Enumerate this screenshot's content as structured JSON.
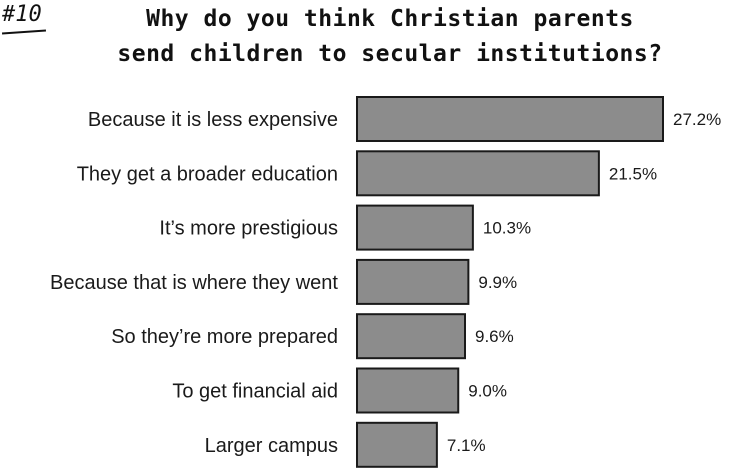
{
  "header": {
    "badge": "#10",
    "title_line1": "Why do you think Christian parents",
    "title_line2": "send children to secular institutions?"
  },
  "chart_data": {
    "type": "bar",
    "orientation": "horizontal",
    "title": "Why do you think Christian parents send children to secular institutions?",
    "categories": [
      "Because it is less expensive",
      "They get a broader education",
      "It’s more prestigious",
      "Because that is where they went",
      "So they’re more prepared",
      "To get financial aid",
      "Larger campus"
    ],
    "values": [
      27.2,
      21.5,
      10.3,
      9.9,
      9.6,
      9.0,
      7.1
    ],
    "value_labels": [
      "27.2%",
      "21.5%",
      "10.3%",
      "9.9%",
      "9.6%",
      "9.0%",
      "7.1%"
    ],
    "xlim": [
      0,
      27.2
    ],
    "grid": false,
    "legend": "none",
    "bar_color": "#8c8c8c",
    "bar_edge_color": "#1a1a1a"
  }
}
